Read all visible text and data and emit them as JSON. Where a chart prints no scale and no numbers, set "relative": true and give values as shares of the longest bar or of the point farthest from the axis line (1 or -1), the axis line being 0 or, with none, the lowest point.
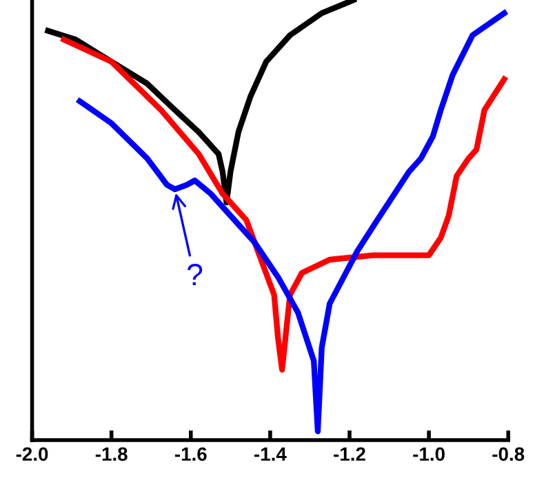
{
  "chart_data": {
    "type": "line",
    "relative": true,
    "tick_labels": "x",
    "grid": false,
    "legend": false,
    "marker": "none",
    "line_style": "solid",
    "xlim": [
      -2.0,
      -0.8
    ],
    "xticks": [
      {
        "value": -2.0,
        "label": "-2.0"
      },
      -1.8,
      -1.6,
      -1.4,
      -1.2,
      {
        "value": -1.0,
        "label": "-1.0"
      },
      -0.8
    ],
    "annotations": [
      {
        "text": "?",
        "x": -1.64,
        "y": 0.57
      }
    ],
    "series": [
      {
        "color": "#000000",
        "x": [
          -1.96,
          -1.89,
          -1.8,
          -1.71,
          -1.64,
          -1.58,
          -1.53,
          -1.52,
          -1.51,
          -1.5,
          -1.48,
          -1.45,
          -1.41,
          -1.35,
          -1.27,
          -1.19
        ],
        "values": [
          0.93,
          0.91,
          0.86,
          0.81,
          0.75,
          0.7,
          0.65,
          0.61,
          0.54,
          0.61,
          0.7,
          0.78,
          0.86,
          0.92,
          0.97,
          1.0
        ]
      },
      {
        "color": "#ff0000",
        "x": [
          -1.92,
          -1.8,
          -1.675,
          -1.58,
          -1.52,
          -1.46,
          -1.39,
          -1.38,
          -1.37,
          -1.35,
          -1.32,
          -1.25,
          -1.14,
          -1.0,
          -0.97,
          -0.95,
          -0.93,
          -0.9,
          -0.88,
          -0.86,
          -0.81
        ],
        "values": [
          0.91,
          0.86,
          0.75,
          0.65,
          0.56,
          0.5,
          0.33,
          0.23,
          0.16,
          0.33,
          0.38,
          0.41,
          0.42,
          0.42,
          0.46,
          0.51,
          0.6,
          0.64,
          0.66,
          0.75,
          0.82
        ]
      },
      {
        "color": "#0000ff",
        "x": [
          -1.88,
          -1.8,
          -1.71,
          -1.66,
          -1.64,
          -1.61,
          -1.59,
          -1.55,
          -1.5,
          -1.44,
          -1.38,
          -1.33,
          -1.29,
          -1.28,
          -1.27,
          -1.25,
          -1.18,
          -1.13,
          -1.05,
          -1.02,
          -0.99,
          -0.97,
          -0.94,
          -0.89,
          -0.81
        ],
        "values": [
          0.77,
          0.72,
          0.64,
          0.58,
          0.57,
          0.58,
          0.59,
          0.56,
          0.51,
          0.45,
          0.37,
          0.29,
          0.18,
          0.02,
          0.21,
          0.31,
          0.43,
          0.5,
          0.61,
          0.64,
          0.69,
          0.75,
          0.83,
          0.92,
          0.97
        ]
      }
    ]
  }
}
